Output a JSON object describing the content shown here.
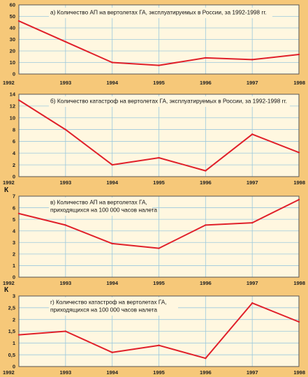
{
  "colors": {
    "background": "#f6c879",
    "panel": "#fff7e0",
    "grid": "#9bc9dd",
    "line": "#e0202a"
  },
  "chart_data": [
    {
      "type": "line",
      "title": "а) Количество АП на вертолетах ГА, эксплуатируемых в России, за 1992-1998 гг.",
      "ylabel": "",
      "x": [
        "1992",
        "1993",
        "1994",
        "1995",
        "1996",
        "1997",
        "1998"
      ],
      "y": [
        46,
        28,
        10,
        7.5,
        14,
        12.5,
        17
      ],
      "ylim": [
        0,
        60
      ],
      "yticks": [
        0,
        10,
        20,
        30,
        40,
        50,
        60
      ],
      "grid": true
    },
    {
      "type": "line",
      "title": "б) Количество катастроф на вертолетах ГА, эксплуатируемых в России, за 1992-1998 гг.",
      "ylabel": "",
      "x": [
        "1992",
        "1993",
        "1994",
        "1995",
        "1996",
        "1997",
        "1998"
      ],
      "y": [
        13,
        8,
        2,
        3.2,
        1,
        7.2,
        4.1
      ],
      "ylim": [
        0,
        14
      ],
      "yticks": [
        0,
        2,
        4,
        6,
        8,
        10,
        12,
        14
      ],
      "grid": true
    },
    {
      "type": "line",
      "title": "в) Количество АП на вертолетах ГА, приходящихся на 100 000 часов налета",
      "ylabel": "К",
      "x": [
        "1992",
        "1993",
        "1994",
        "1995",
        "1996",
        "1997",
        "1998"
      ],
      "y": [
        5.5,
        4.5,
        2.9,
        2.5,
        4.5,
        4.7,
        6.7
      ],
      "ylim": [
        0,
        7
      ],
      "yticks": [
        0,
        1,
        2,
        3,
        4,
        5,
        6,
        7
      ],
      "grid": true
    },
    {
      "type": "line",
      "title": "г) Количество катастроф на вертолетах ГА, приходящихся на 100 000 часов налета",
      "ylabel": "К",
      "x": [
        "1992",
        "1993",
        "1994",
        "1995",
        "1996",
        "1997",
        "1998"
      ],
      "y": [
        1.35,
        1.5,
        0.6,
        0.9,
        0.35,
        2.7,
        1.9
      ],
      "ylim": [
        0,
        3
      ],
      "yticks": [
        0,
        0.5,
        1,
        1.5,
        2,
        2.5,
        3
      ],
      "yticklabels": [
        "0",
        "0,5",
        "1",
        "1,5",
        "2",
        "2,5",
        "3"
      ],
      "grid": true
    }
  ]
}
